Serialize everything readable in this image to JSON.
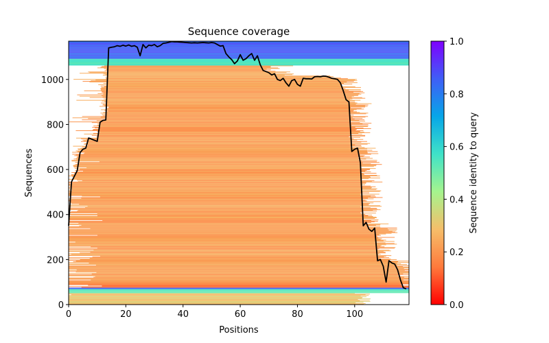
{
  "chart_data": {
    "type": "heatmap",
    "title": "Sequence coverage",
    "xlabel": "Positions",
    "ylabel": "Sequences",
    "xlim": [
      0,
      119
    ],
    "ylim": [
      0,
      1170
    ],
    "xticks": [
      0,
      20,
      40,
      60,
      80,
      100
    ],
    "yticks": [
      0,
      200,
      400,
      600,
      800,
      1000
    ],
    "colorbar": {
      "label": "Sequence identity to query",
      "range": [
        0.0,
        1.0
      ],
      "ticks": [
        "0.0",
        "0.2",
        "0.4",
        "0.6",
        "0.8",
        "1.0"
      ],
      "colormap": "rainbow_r",
      "colors": [
        "#ff0000",
        "#ff7a3c",
        "#f5be6a",
        "#a5f48e",
        "#3fe2c8",
        "#06a6e8",
        "#3f5ef6",
        "#7f00ff"
      ]
    },
    "coverage_line": {
      "name": "coverage",
      "color": "#000000",
      "x": [
        0,
        1,
        2,
        3,
        4,
        5,
        6,
        7,
        8,
        9,
        10,
        11,
        12,
        13,
        14,
        15,
        16,
        17,
        18,
        19,
        20,
        21,
        22,
        23,
        24,
        25,
        26,
        27,
        28,
        29,
        30,
        31,
        32,
        33,
        34,
        35,
        36,
        37,
        38,
        39,
        40,
        41,
        42,
        43,
        44,
        45,
        46,
        47,
        48,
        49,
        50,
        51,
        52,
        53,
        54,
        55,
        56,
        57,
        58,
        59,
        60,
        61,
        62,
        63,
        64,
        65,
        66,
        67,
        68,
        69,
        70,
        71,
        72,
        73,
        74,
        75,
        76,
        77,
        78,
        79,
        80,
        81,
        82,
        83,
        84,
        85,
        86,
        87,
        88,
        89,
        90,
        91,
        92,
        93,
        94,
        95,
        96,
        97,
        98,
        99,
        100,
        101,
        102,
        103,
        104,
        105,
        106,
        107,
        108,
        109,
        110,
        111,
        112,
        113,
        114,
        115,
        116,
        117,
        118
      ],
      "y": [
        350,
        545,
        570,
        595,
        675,
        690,
        695,
        740,
        735,
        730,
        725,
        810,
        818,
        820,
        1140,
        1143,
        1145,
        1150,
        1147,
        1152,
        1148,
        1153,
        1147,
        1150,
        1143,
        1105,
        1155,
        1140,
        1152,
        1150,
        1155,
        1145,
        1150,
        1160,
        1162,
        1165,
        1168,
        1167,
        1167,
        1166,
        1165,
        1164,
        1163,
        1162,
        1163,
        1162,
        1163,
        1164,
        1163,
        1162,
        1164,
        1162,
        1155,
        1148,
        1150,
        1115,
        1100,
        1088,
        1070,
        1082,
        1110,
        1085,
        1092,
        1105,
        1115,
        1085,
        1105,
        1065,
        1040,
        1035,
        1030,
        1020,
        1025,
        1000,
        995,
        1005,
        985,
        970,
        995,
        1000,
        978,
        970,
        1005,
        1003,
        1003,
        1002,
        1012,
        1013,
        1012,
        1015,
        1014,
        1010,
        1005,
        1003,
        1000,
        985,
        950,
        910,
        900,
        680,
        690,
        695,
        630,
        350,
        365,
        335,
        325,
        340,
        195,
        200,
        170,
        100,
        195,
        185,
        180,
        155,
        110,
        75,
        70
      ]
    },
    "bands": [
      {
        "y_from": 1090,
        "y_to": 1170,
        "identity": 0.85,
        "note": "top high-identity block (blue)"
      },
      {
        "y_from": 1060,
        "y_to": 1090,
        "identity": 0.55,
        "note": "green block"
      },
      {
        "y_from": 95,
        "y_to": 1060,
        "identity": 0.22,
        "note": "main orange block"
      },
      {
        "y_from": 75,
        "y_to": 95,
        "identity": 0.15,
        "note": "red-orange rows"
      },
      {
        "y_from": 68,
        "y_to": 75,
        "identity": 0.85,
        "note": "blue stripe"
      },
      {
        "y_from": 50,
        "y_to": 68,
        "identity": 0.55,
        "note": "green stripe"
      },
      {
        "y_from": 0,
        "y_to": 50,
        "identity": 0.3,
        "note": "bottom light orange block"
      }
    ]
  }
}
